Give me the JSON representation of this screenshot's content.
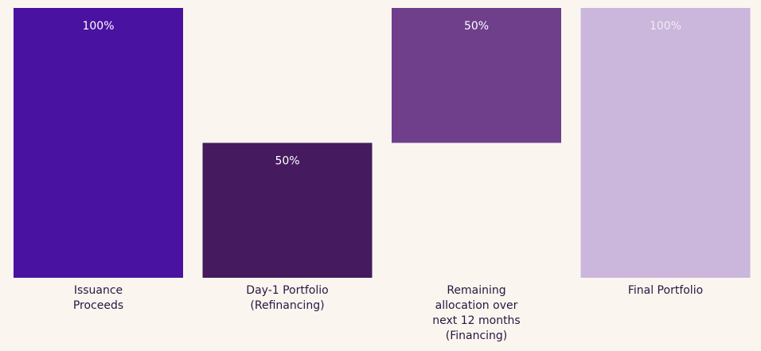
{
  "chart_data": {
    "type": "waterfall",
    "categories": [
      "Issuance Proceeds",
      "Day-1 Portfolio (Refinancing)",
      "Remaining allocation over next 12 months (Financing)",
      "Final Portfolio"
    ],
    "values": [
      100,
      50,
      50,
      100
    ],
    "value_labels": [
      "100%",
      "50%",
      "50%",
      "100%"
    ],
    "colors": [
      "#4a12a0",
      "#451a5e",
      "#6f3f8c",
      "#cbb6dc"
    ]
  }
}
